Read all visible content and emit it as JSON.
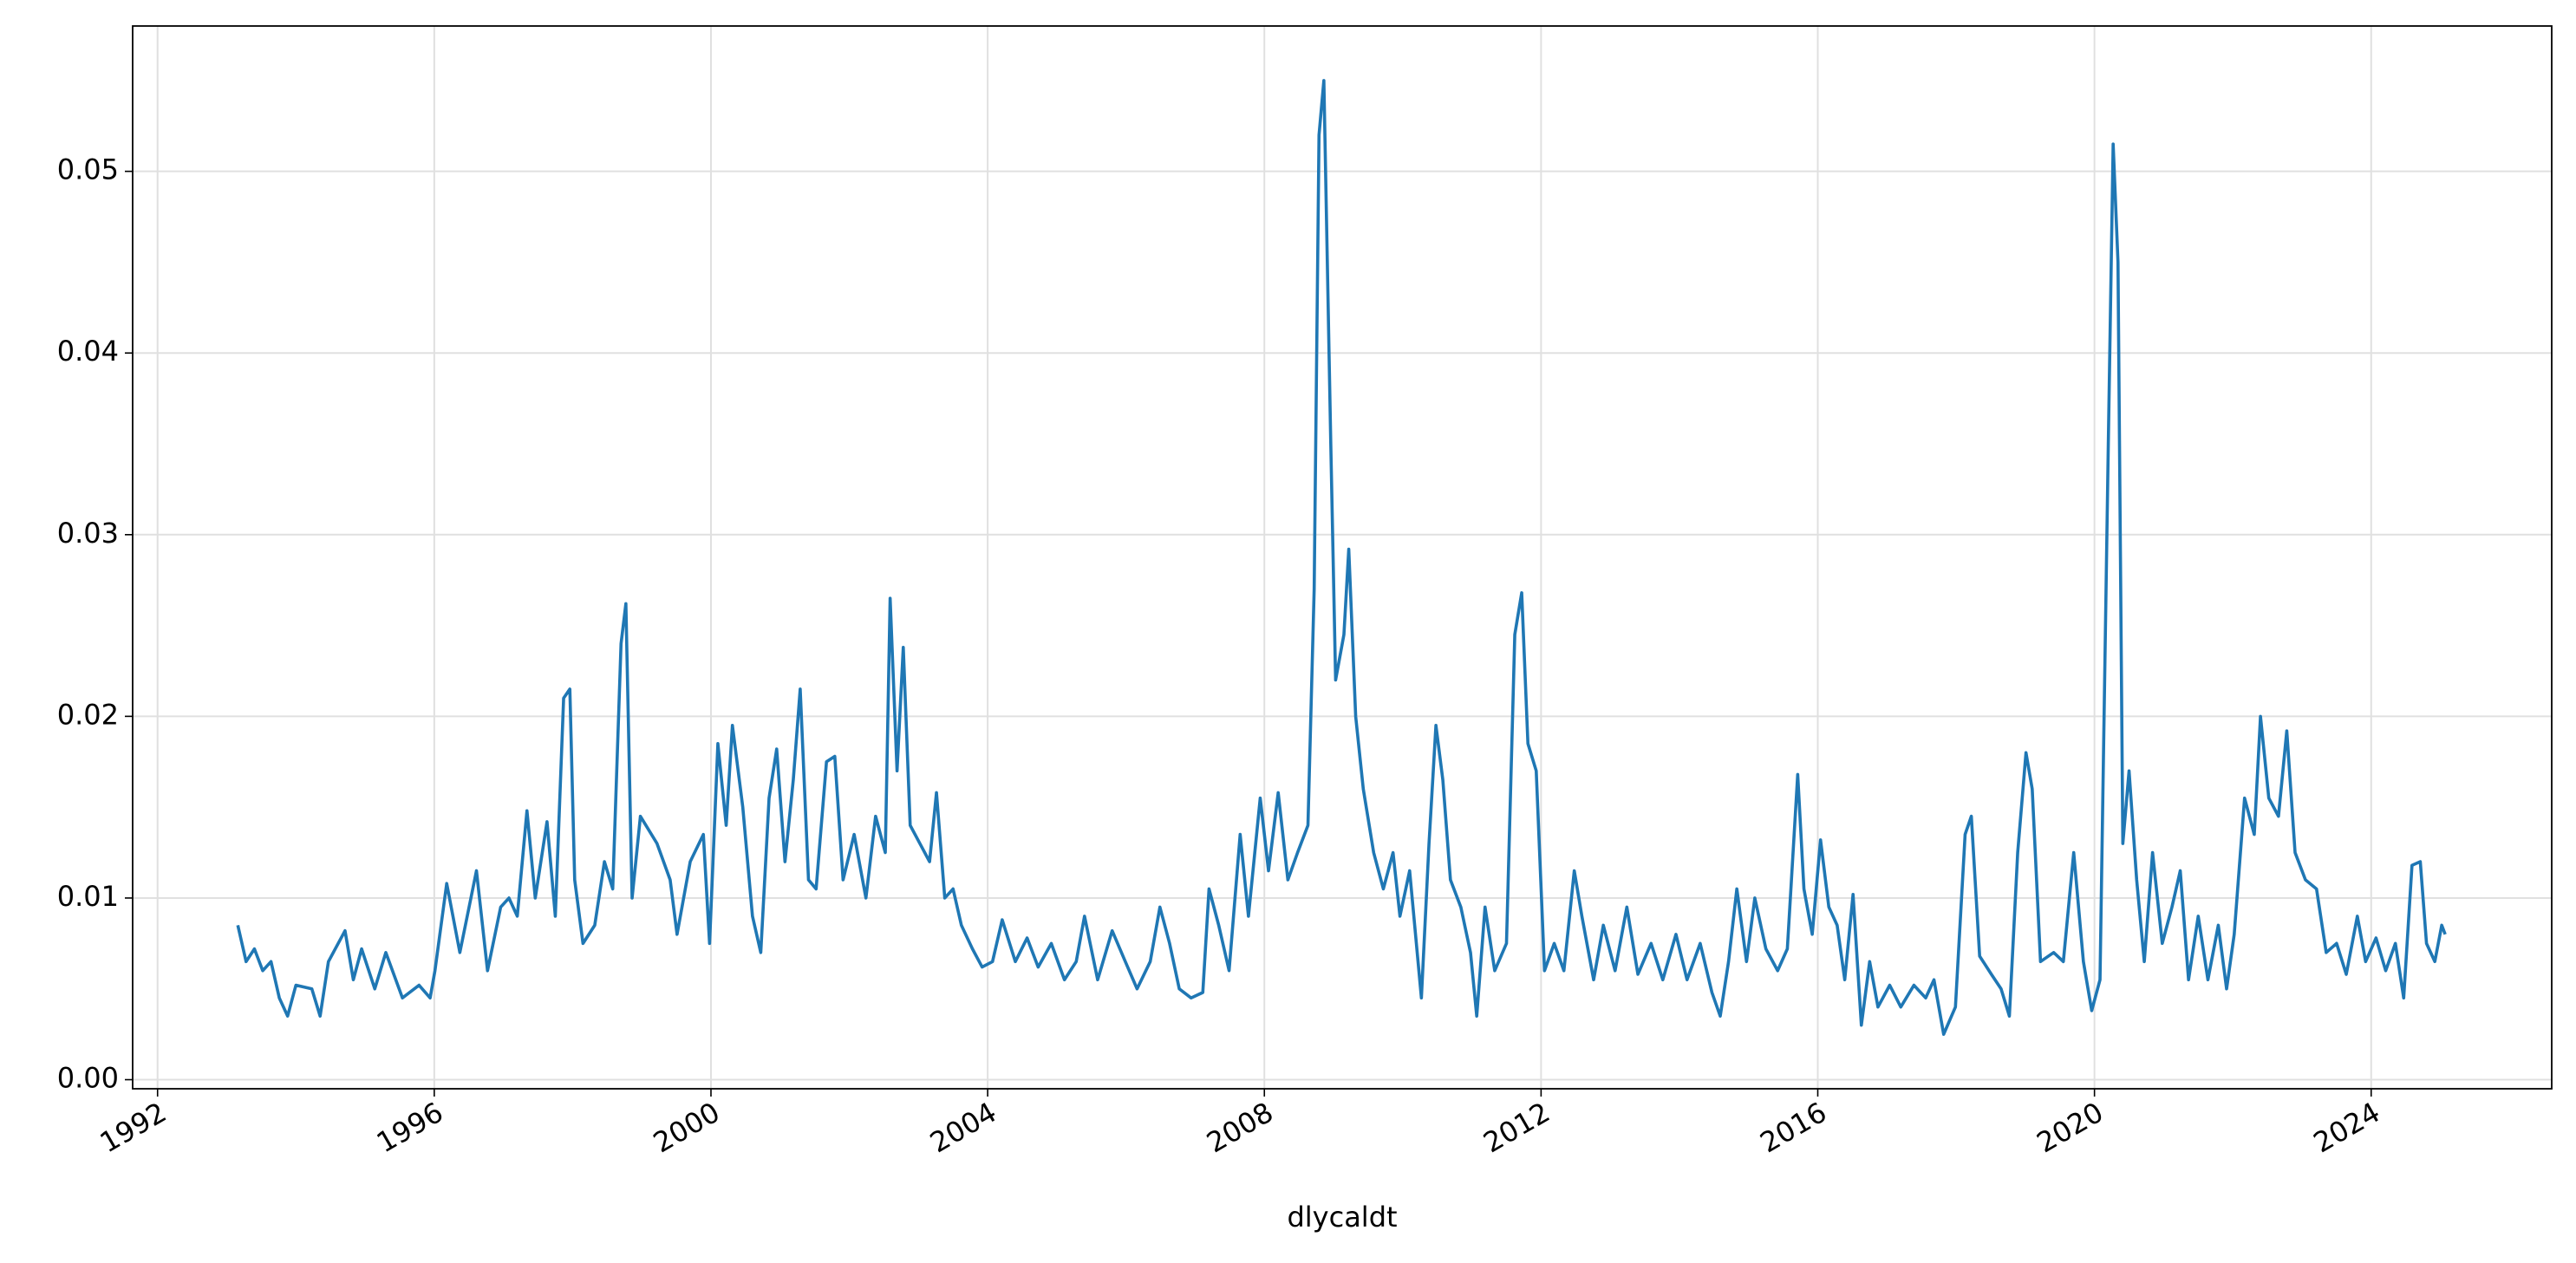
{
  "chart_data": {
    "type": "line",
    "xlabel": "dlycaldt",
    "color": "#1f77b4",
    "grid": true,
    "xlim": [
      1991.64,
      2026.61
    ],
    "ylim": [
      -0.0005,
      0.058
    ],
    "xticks": [
      1992,
      1996,
      2000,
      2004,
      2008,
      2012,
      2016,
      2020,
      2024
    ],
    "yticks": [
      {
        "value": 0,
        "label": "0.00"
      },
      0.01,
      0.02,
      0.03,
      0.04,
      0.05
    ],
    "x": [
      1993.16,
      1993.28,
      1993.4,
      1993.52,
      1993.64,
      1993.76,
      1993.88,
      1994.0,
      1994.23,
      1994.35,
      1994.47,
      1994.71,
      1994.83,
      1994.95,
      1995.14,
      1995.3,
      1995.54,
      1995.78,
      1995.94,
      1996.01,
      1996.18,
      1996.37,
      1996.61,
      1996.77,
      1996.96,
      1997.08,
      1997.2,
      1997.34,
      1997.46,
      1997.63,
      1997.75,
      1997.87,
      1997.96,
      1998.03,
      1998.15,
      1998.32,
      1998.46,
      1998.58,
      1998.7,
      1998.77,
      1998.86,
      1998.98,
      1999.22,
      1999.41,
      1999.51,
      1999.7,
      1999.89,
      1999.98,
      2000.1,
      2000.22,
      2000.31,
      2000.46,
      2000.6,
      2000.72,
      2000.84,
      2000.95,
      2001.07,
      2001.19,
      2001.29,
      2001.41,
      2001.52,
      2001.67,
      2001.79,
      2001.91,
      2002.07,
      2002.24,
      2002.38,
      2002.52,
      2002.59,
      2002.69,
      2002.78,
      2002.88,
      2003.02,
      2003.16,
      2003.26,
      2003.38,
      2003.5,
      2003.62,
      2003.78,
      2003.92,
      2004.07,
      2004.21,
      2004.4,
      2004.57,
      2004.73,
      2004.92,
      2005.11,
      2005.28,
      2005.4,
      2005.59,
      2005.8,
      2005.99,
      2006.16,
      2006.35,
      2006.49,
      2006.63,
      2006.77,
      2006.94,
      2007.11,
      2007.2,
      2007.34,
      2007.49,
      2007.65,
      2007.77,
      2007.94,
      2008.06,
      2008.2,
      2008.34,
      2008.48,
      2008.63,
      2008.72,
      2008.79,
      2008.86,
      2008.96,
      2009.03,
      2009.15,
      2009.22,
      2009.32,
      2009.43,
      2009.58,
      2009.72,
      2009.86,
      2009.96,
      2010.1,
      2010.27,
      2010.38,
      2010.48,
      2010.58,
      2010.69,
      2010.84,
      2010.98,
      2011.07,
      2011.19,
      2011.33,
      2011.5,
      2011.62,
      2011.72,
      2011.81,
      2011.93,
      2012.05,
      2012.19,
      2012.33,
      2012.48,
      2012.59,
      2012.76,
      2012.9,
      2013.07,
      2013.24,
      2013.4,
      2013.59,
      2013.76,
      2013.95,
      2014.11,
      2014.3,
      2014.47,
      2014.59,
      2014.71,
      2014.83,
      2014.97,
      2015.09,
      2015.25,
      2015.42,
      2015.56,
      2015.71,
      2015.8,
      2015.92,
      2016.04,
      2016.16,
      2016.28,
      2016.39,
      2016.51,
      2016.63,
      2016.75,
      2016.87,
      2017.04,
      2017.2,
      2017.39,
      2017.56,
      2017.68,
      2017.82,
      2017.99,
      2018.13,
      2018.22,
      2018.34,
      2018.51,
      2018.65,
      2018.77,
      2018.89,
      2019.01,
      2019.1,
      2019.22,
      2019.41,
      2019.55,
      2019.7,
      2019.84,
      2019.96,
      2020.08,
      2020.2,
      2020.27,
      2020.34,
      2020.41,
      2020.5,
      2020.61,
      2020.72,
      2020.84,
      2020.98,
      2021.12,
      2021.24,
      2021.36,
      2021.5,
      2021.64,
      2021.79,
      2021.91,
      2022.02,
      2022.17,
      2022.31,
      2022.4,
      2022.52,
      2022.66,
      2022.78,
      2022.9,
      2023.05,
      2023.21,
      2023.35,
      2023.5,
      2023.64,
      2023.8,
      2023.92,
      2024.07,
      2024.21,
      2024.35,
      2024.47,
      2024.59,
      2024.71,
      2024.8,
      2024.92,
      2025.02,
      2025.07
    ],
    "values": [
      0.0085,
      0.0065,
      0.0072,
      0.006,
      0.0065,
      0.0045,
      0.0035,
      0.0052,
      0.005,
      0.0035,
      0.0065,
      0.0082,
      0.0055,
      0.0072,
      0.005,
      0.007,
      0.0045,
      0.0052,
      0.0045,
      0.006,
      0.0108,
      0.007,
      0.0115,
      0.006,
      0.0095,
      0.01,
      0.009,
      0.0148,
      0.01,
      0.0142,
      0.009,
      0.021,
      0.0215,
      0.011,
      0.0075,
      0.0085,
      0.012,
      0.0105,
      0.024,
      0.0262,
      0.01,
      0.0145,
      0.013,
      0.011,
      0.008,
      0.012,
      0.0135,
      0.0075,
      0.0185,
      0.014,
      0.0195,
      0.015,
      0.009,
      0.007,
      0.0155,
      0.0182,
      0.012,
      0.0165,
      0.0215,
      0.011,
      0.0105,
      0.0175,
      0.0178,
      0.011,
      0.0135,
      0.01,
      0.0145,
      0.0125,
      0.0265,
      0.017,
      0.0238,
      0.014,
      0.013,
      0.012,
      0.0158,
      0.01,
      0.0105,
      0.0085,
      0.0072,
      0.0062,
      0.0065,
      0.0088,
      0.0065,
      0.0078,
      0.0062,
      0.0075,
      0.0055,
      0.0065,
      0.009,
      0.0055,
      0.0082,
      0.0065,
      0.005,
      0.0065,
      0.0095,
      0.0075,
      0.005,
      0.0045,
      0.0048,
      0.0105,
      0.0085,
      0.006,
      0.0135,
      0.009,
      0.0155,
      0.0115,
      0.0158,
      0.011,
      0.0125,
      0.014,
      0.027,
      0.052,
      0.055,
      0.035,
      0.022,
      0.0245,
      0.0292,
      0.02,
      0.016,
      0.0125,
      0.0105,
      0.0125,
      0.009,
      0.0115,
      0.0045,
      0.013,
      0.0195,
      0.0165,
      0.011,
      0.0095,
      0.007,
      0.0035,
      0.0095,
      0.006,
      0.0075,
      0.0245,
      0.0268,
      0.0185,
      0.017,
      0.006,
      0.0075,
      0.006,
      0.0115,
      0.009,
      0.0055,
      0.0085,
      0.006,
      0.0095,
      0.0058,
      0.0075,
      0.0055,
      0.008,
      0.0055,
      0.0075,
      0.0048,
      0.0035,
      0.0065,
      0.0105,
      0.0065,
      0.01,
      0.0072,
      0.006,
      0.0072,
      0.0168,
      0.0105,
      0.008,
      0.0132,
      0.0095,
      0.0085,
      0.0055,
      0.0102,
      0.003,
      0.0065,
      0.004,
      0.0052,
      0.004,
      0.0052,
      0.0045,
      0.0055,
      0.0025,
      0.004,
      0.0135,
      0.0145,
      0.0068,
      0.0058,
      0.005,
      0.0035,
      0.0125,
      0.018,
      0.016,
      0.0065,
      0.007,
      0.0065,
      0.0125,
      0.0065,
      0.0038,
      0.0055,
      0.035,
      0.0515,
      0.045,
      0.013,
      0.017,
      0.011,
      0.0065,
      0.0125,
      0.0075,
      0.0095,
      0.0115,
      0.0055,
      0.009,
      0.0055,
      0.0085,
      0.005,
      0.008,
      0.0155,
      0.0135,
      0.02,
      0.0155,
      0.0145,
      0.0192,
      0.0125,
      0.011,
      0.0105,
      0.007,
      0.0075,
      0.0058,
      0.009,
      0.0065,
      0.0078,
      0.006,
      0.0075,
      0.0045,
      0.0118,
      0.012,
      0.0075,
      0.0065,
      0.0085,
      0.008
    ]
  }
}
